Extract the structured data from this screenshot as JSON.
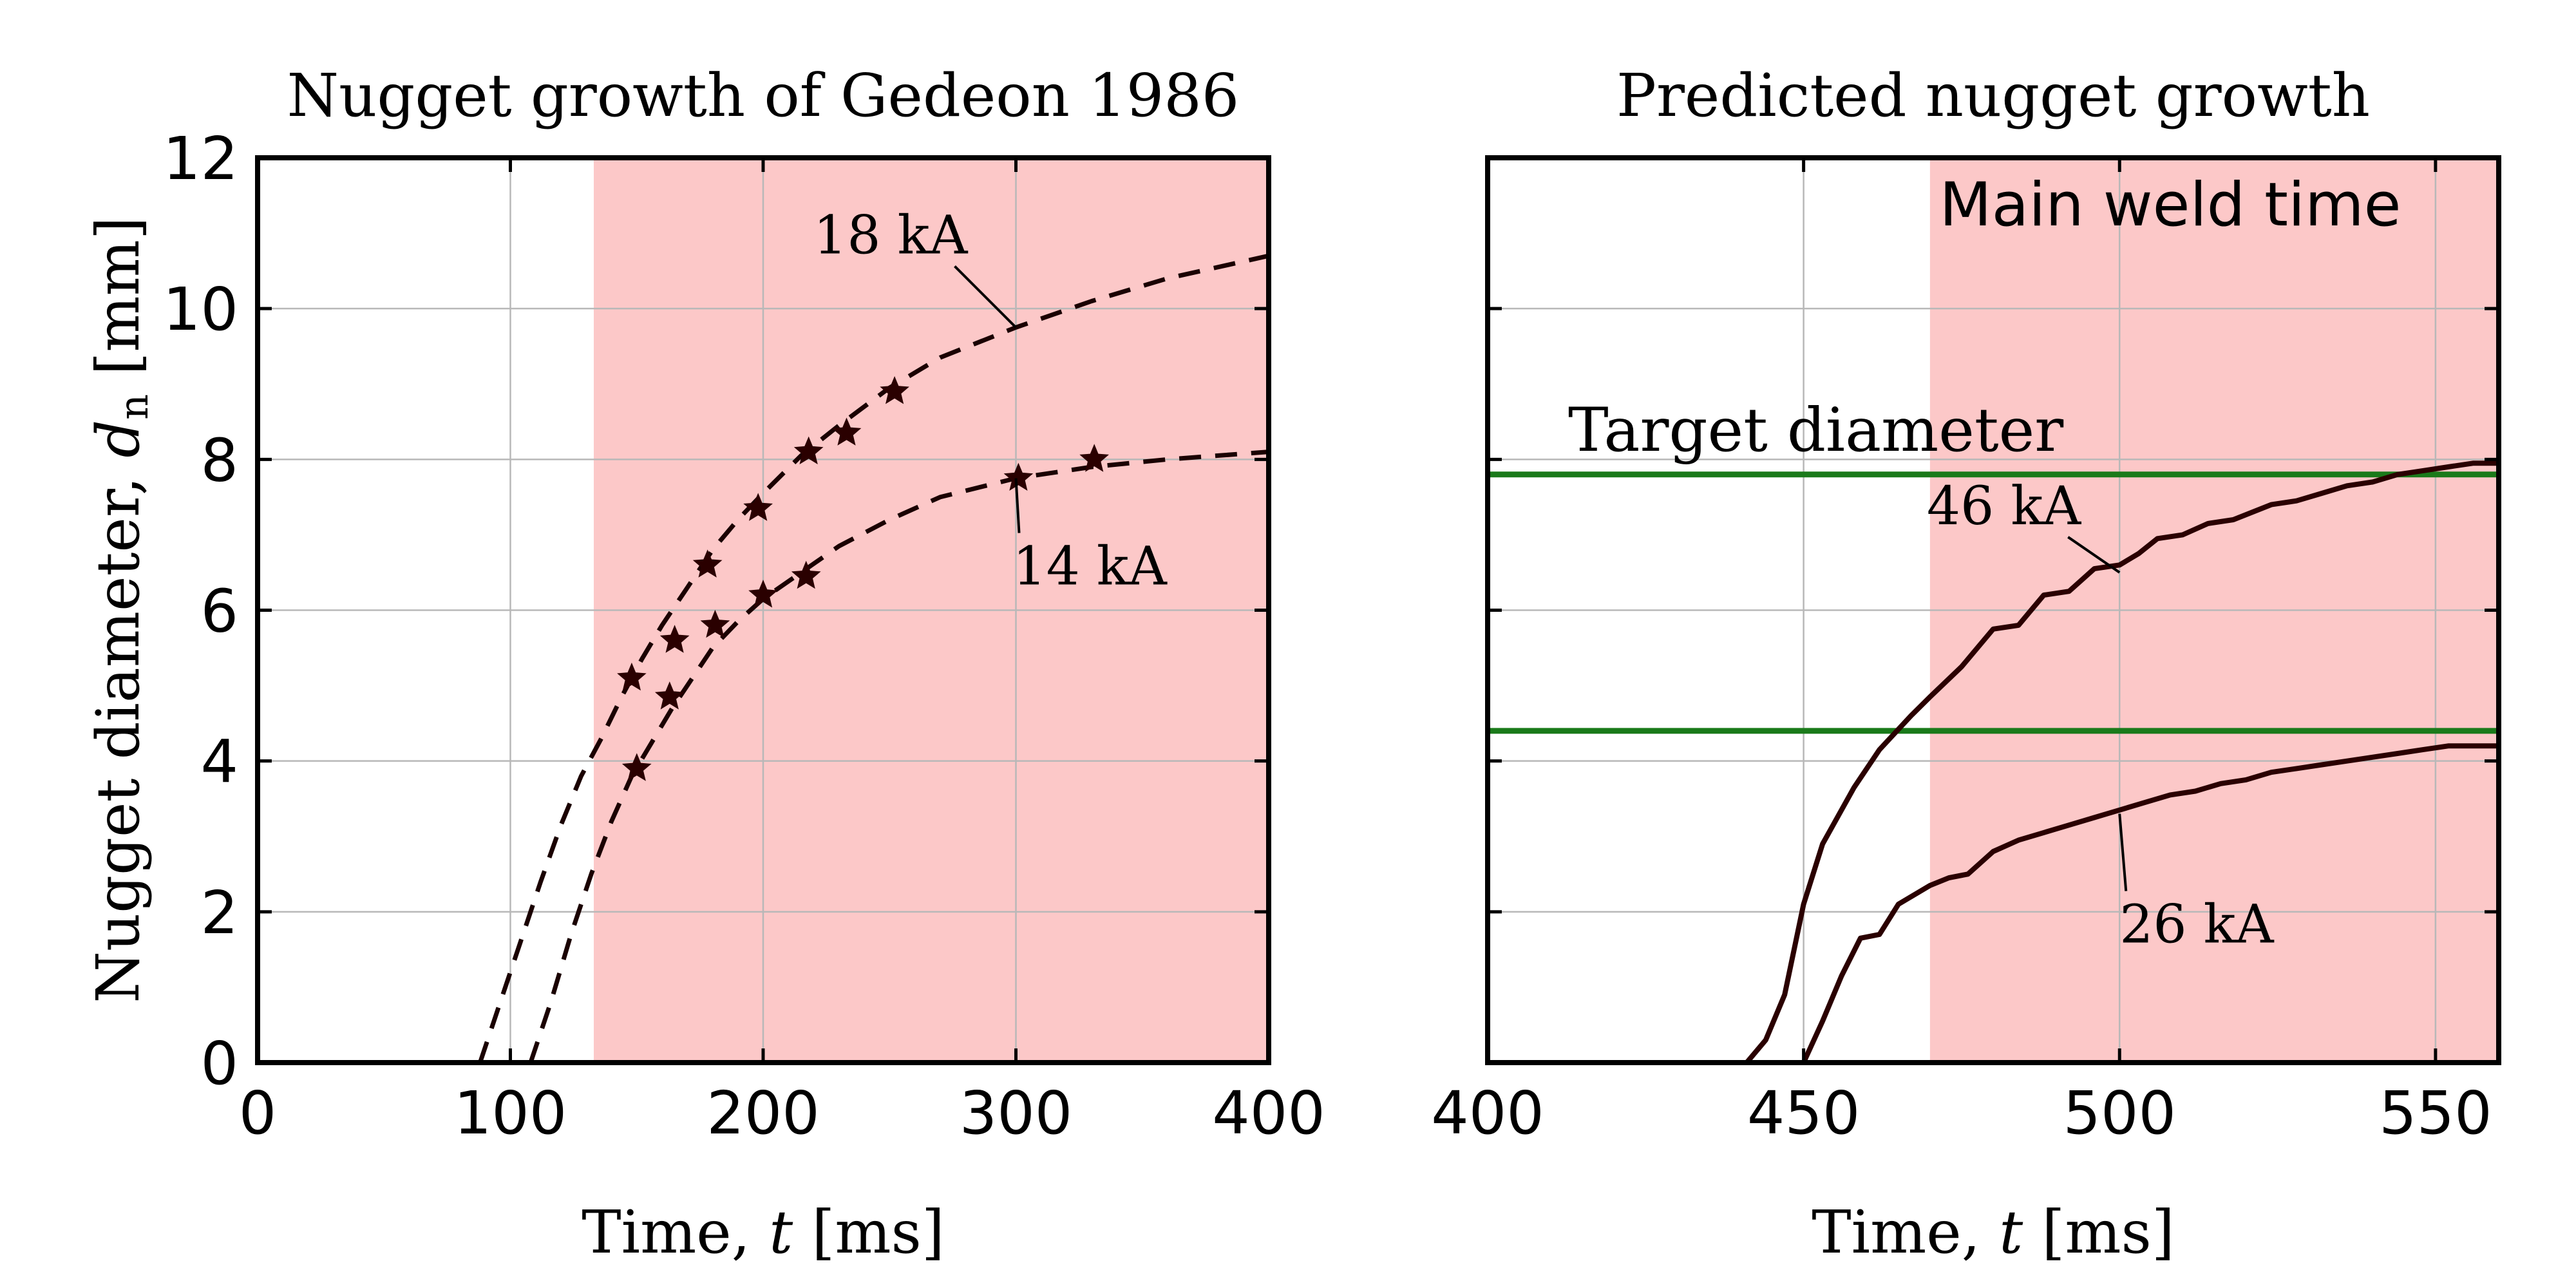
{
  "chart_data": [
    {
      "type": "line",
      "title": "Nugget growth of Gedeon 1986",
      "xlabel_main": "Time, ",
      "xlabel_var": "t",
      "xlabel_unit": " [ms]",
      "ylabel_main": "Nugget diameter, ",
      "ylabel_var": "d",
      "ylabel_sub": "n",
      "ylabel_unit": " [mm]",
      "xlim": [
        0,
        400
      ],
      "ylim": [
        0,
        12
      ],
      "xticks": [
        "0",
        "100",
        "200",
        "300",
        "400"
      ],
      "yticks": [
        "0",
        "2",
        "4",
        "6",
        "8",
        "10",
        "12"
      ],
      "grid": true,
      "shaded_region": {
        "x": [
          133,
          400
        ],
        "color": "#fcc8c8"
      },
      "series": [
        {
          "name": "18 kA",
          "style": "dashed",
          "x": [
            88,
            96,
            104,
            112,
            120,
            128,
            136,
            144,
            152,
            160,
            170,
            180,
            190,
            200,
            215,
            230,
            250,
            270,
            300,
            330,
            360,
            400
          ],
          "y": [
            0.0,
            0.8,
            1.6,
            2.4,
            3.15,
            3.8,
            4.3,
            4.85,
            5.35,
            5.8,
            6.3,
            6.8,
            7.2,
            7.55,
            8.05,
            8.45,
            8.95,
            9.35,
            9.75,
            10.1,
            10.4,
            10.7
          ],
          "measured": {
            "x": [
              148,
              165,
              178,
              198,
              218,
              233,
              252
            ],
            "y": [
              5.1,
              5.6,
              6.6,
              7.35,
              8.1,
              8.35,
              8.9
            ]
          },
          "label": "18 kA",
          "label_anchor": {
            "x": 300,
            "y": 9.75
          }
        },
        {
          "name": "14 kA",
          "style": "dashed",
          "x": [
            108,
            116,
            124,
            132,
            140,
            148,
            156,
            164,
            172,
            180,
            190,
            200,
            215,
            230,
            250,
            270,
            300,
            330,
            360,
            400
          ],
          "y": [
            0.0,
            0.8,
            1.7,
            2.5,
            3.2,
            3.8,
            4.25,
            4.7,
            5.1,
            5.5,
            5.85,
            6.15,
            6.5,
            6.85,
            7.2,
            7.5,
            7.75,
            7.9,
            8.0,
            8.1
          ],
          "measured": {
            "x": [
              150,
              163,
              181,
              200,
              217,
              301,
              331
            ],
            "y": [
              3.9,
              4.85,
              5.8,
              6.2,
              6.45,
              7.75,
              8.0
            ]
          },
          "label": "14 kA",
          "label_anchor": {
            "x": 300,
            "y": 7.75
          }
        }
      ]
    },
    {
      "type": "line",
      "title": "Predicted nugget growth",
      "xlabel_main": "Time, ",
      "xlabel_var": "t",
      "xlabel_unit": " [ms]",
      "xlim": [
        400,
        560
      ],
      "ylim": [
        0,
        12
      ],
      "xticks": [
        "400",
        "450",
        "500",
        "550"
      ],
      "grid": true,
      "shaded_region": {
        "x": [
          470,
          560
        ],
        "color": "#fcc8c8",
        "label": "Main weld time"
      },
      "target_lines": {
        "y": [
          7.8,
          4.4
        ],
        "color": "#1a7a1a",
        "label": "Target diameter"
      },
      "series": [
        {
          "name": "46 kA",
          "style": "solid",
          "x": [
            400,
            441,
            444,
            447,
            450,
            453,
            458,
            462,
            467,
            470,
            475,
            480,
            484,
            488,
            492,
            496,
            500,
            503,
            506,
            510,
            514,
            518,
            524,
            528,
            532,
            536,
            540,
            544,
            548,
            552,
            556,
            560
          ],
          "y": [
            0,
            0,
            0.3,
            0.9,
            2.1,
            2.9,
            3.65,
            4.15,
            4.6,
            4.85,
            5.25,
            5.75,
            5.8,
            6.2,
            6.25,
            6.55,
            6.6,
            6.75,
            6.95,
            7.0,
            7.15,
            7.2,
            7.4,
            7.45,
            7.55,
            7.65,
            7.7,
            7.8,
            7.85,
            7.9,
            7.95,
            7.95
          ],
          "label": "46 kA",
          "label_anchor": {
            "x": 500,
            "y": 6.5
          }
        },
        {
          "name": "26 kA",
          "style": "solid",
          "x": [
            400,
            450,
            453,
            456,
            459,
            462,
            465,
            467,
            470,
            473,
            476,
            480,
            484,
            488,
            492,
            496,
            500,
            504,
            508,
            512,
            516,
            520,
            524,
            528,
            532,
            536,
            540,
            544,
            548,
            552,
            556,
            560
          ],
          "y": [
            0,
            0,
            0.55,
            1.15,
            1.65,
            1.7,
            2.1,
            2.2,
            2.35,
            2.45,
            2.5,
            2.8,
            2.95,
            3.05,
            3.15,
            3.25,
            3.35,
            3.45,
            3.55,
            3.6,
            3.7,
            3.75,
            3.85,
            3.9,
            3.95,
            4.0,
            4.05,
            4.1,
            4.15,
            4.2,
            4.2,
            4.2
          ],
          "label": "26 kA",
          "label_anchor": {
            "x": 500,
            "y": 3.3
          }
        }
      ]
    }
  ]
}
